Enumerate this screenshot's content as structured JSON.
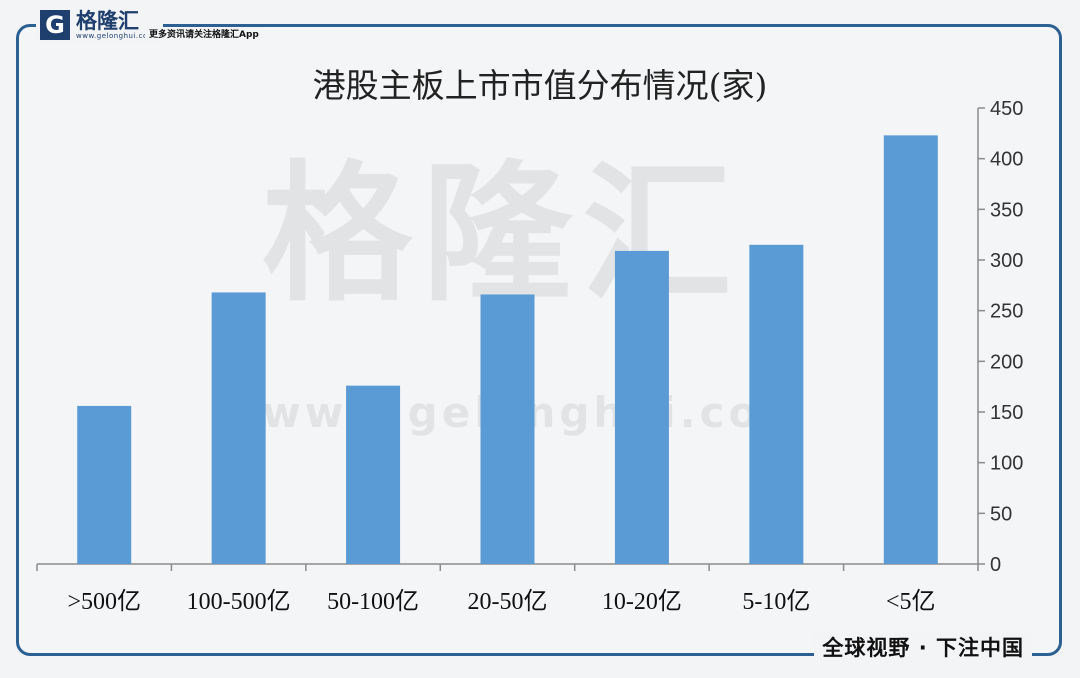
{
  "brand": {
    "logo_letter": "G",
    "logo_name": "格隆汇",
    "logo_url": "www.gelonghui.com",
    "tagline": "更多资讯请关注格隆汇App",
    "slogan": "全球视野 · 下注中国",
    "frame_color": "#2c5f92",
    "watermark_text": "格隆汇",
    "watermark_url": "www.gelonghui.com"
  },
  "chart_data": {
    "type": "bar",
    "title": "港股主板上市市值分布情况(家)",
    "categories": [
      ">500亿",
      "100-500亿",
      "50-100亿",
      "20-50亿",
      "10-20亿",
      "5-10亿",
      "<5亿"
    ],
    "values": [
      156,
      268,
      176,
      266,
      309,
      315,
      423
    ],
    "xlabel": "",
    "ylabel": "",
    "ylim": [
      0,
      450
    ],
    "yticks": [
      0,
      50,
      100,
      150,
      200,
      250,
      300,
      350,
      400,
      450
    ],
    "y_axis_side": "right",
    "grid": false,
    "legend": "none",
    "bar_color": "#5b9bd5"
  }
}
